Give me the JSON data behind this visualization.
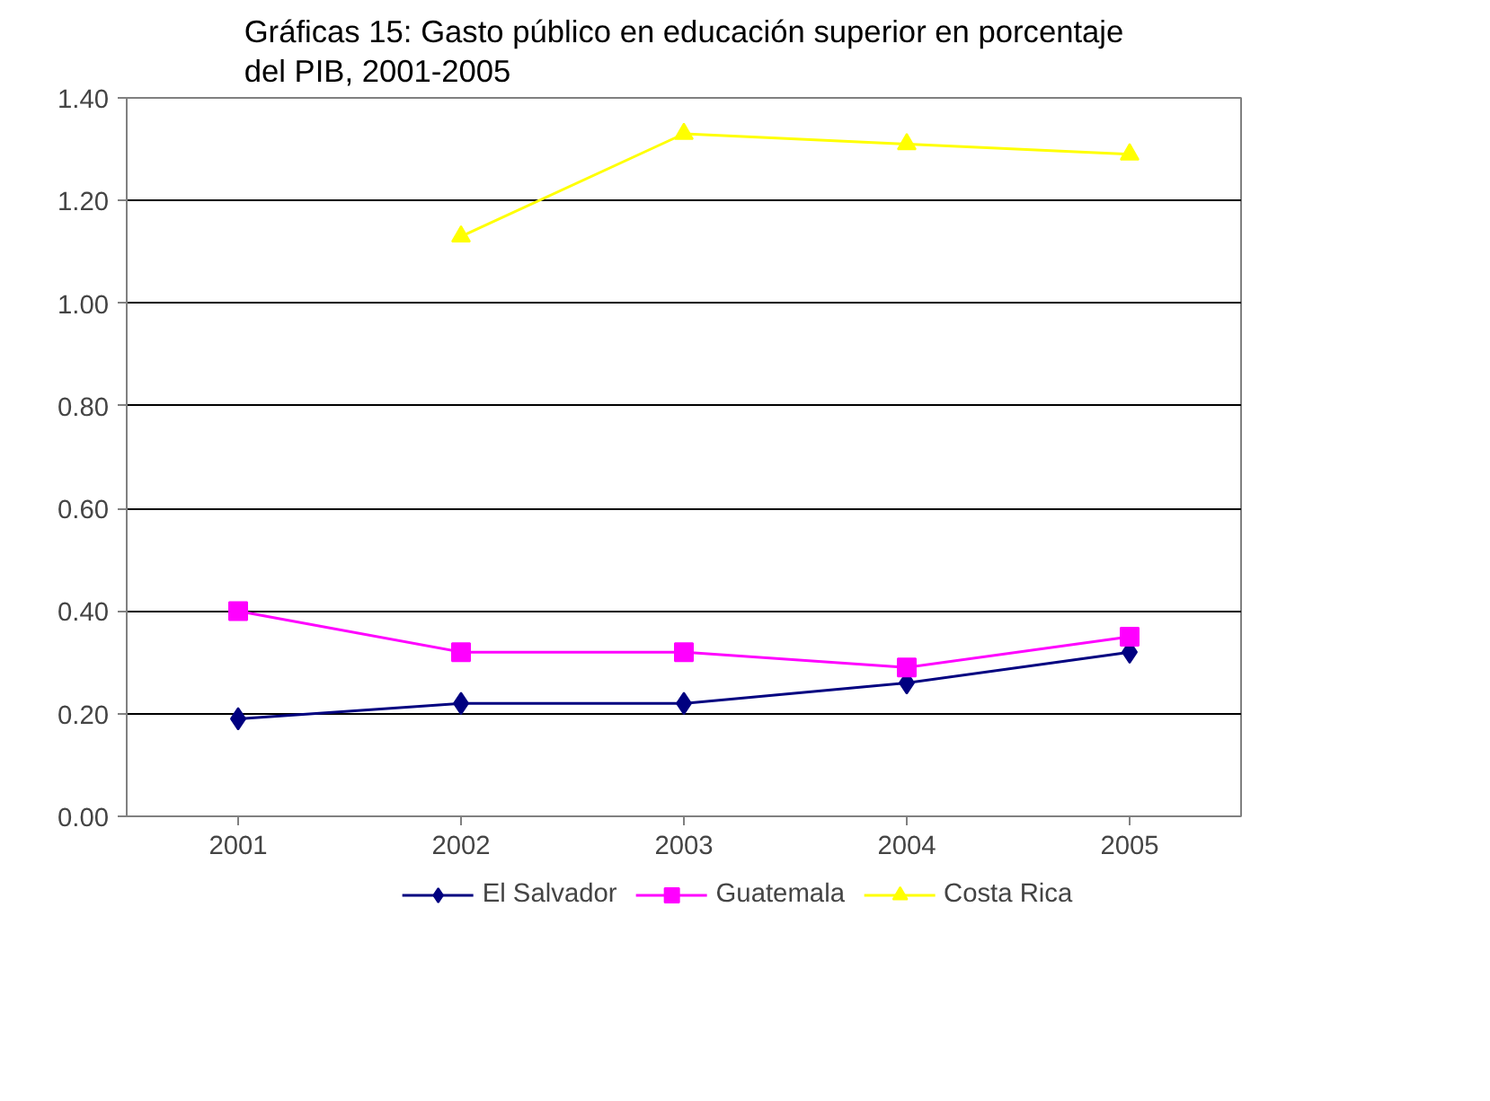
{
  "chart_data": {
    "type": "line",
    "title": "Gráficas 15: Gasto público en educación superior en porcentaje del PIB, 2001-2005",
    "categories": [
      "2001",
      "2002",
      "2003",
      "2004",
      "2005"
    ],
    "series": [
      {
        "name": "El Salvador",
        "color": "#000080",
        "marker": "diamond",
        "values": [
          0.19,
          0.22,
          0.22,
          0.26,
          0.32
        ]
      },
      {
        "name": "Guatemala",
        "color": "#ff00ff",
        "marker": "square",
        "values": [
          0.4,
          0.32,
          0.32,
          0.29,
          0.35
        ]
      },
      {
        "name": "Costa Rica",
        "color": "#ffff00",
        "marker": "triangle",
        "values": [
          null,
          1.13,
          1.33,
          1.31,
          1.29
        ]
      }
    ],
    "ylim": [
      0,
      1.4
    ],
    "yticks": [
      {
        "value": 0,
        "label": "0.00"
      },
      {
        "value": 0.2,
        "label": "0.20"
      },
      {
        "value": 0.4,
        "label": "0.40"
      },
      {
        "value": 0.6,
        "label": "0.60"
      },
      {
        "value": 0.8,
        "label": "0.80"
      },
      {
        "value": 1.0,
        "label": "1.00"
      },
      {
        "value": 1.2,
        "label": "1.20"
      },
      {
        "value": 1.4,
        "label": "1.40"
      }
    ],
    "grid": "y",
    "legend": "bottom",
    "line_style": "solid"
  }
}
